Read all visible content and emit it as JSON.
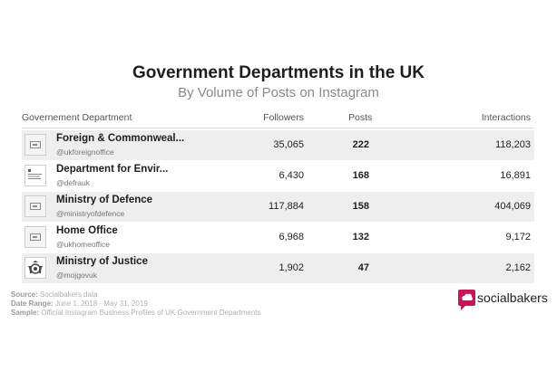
{
  "chart_data": {
    "type": "table",
    "title": "Government Departments in the UK",
    "subtitle": "By Volume of Posts on Instagram",
    "columns": [
      "Governement Department",
      "Followers",
      "Posts",
      "Interactions"
    ],
    "rows": [
      {
        "name": "Foreign & Commonweal...",
        "handle": "@ukforeignoffice",
        "followers": "35,065",
        "posts": "222",
        "interactions": "118,203"
      },
      {
        "name": "Department for Envir...",
        "handle": "@defrauk",
        "followers": "6,430",
        "posts": "168",
        "interactions": "16,891"
      },
      {
        "name": "Ministry of Defence",
        "handle": "@ministryofdefence",
        "followers": "117,884",
        "posts": "158",
        "interactions": "404,069"
      },
      {
        "name": "Home Office",
        "handle": "@ukhomeoffice",
        "followers": "6,968",
        "posts": "132",
        "interactions": "9,172"
      },
      {
        "name": "Ministry of Justice",
        "handle": "@mojgovuk",
        "followers": "1,902",
        "posts": "47",
        "interactions": "2,162"
      }
    ]
  },
  "footer": {
    "source_label": "Source:",
    "source": "Socialbakers data",
    "range_label": "Date Range:",
    "range": "June 1, 2018 - May 31, 2019",
    "sample_label": "Sample:",
    "sample": "Official Instagram Business Profiles of UK Government Departments"
  },
  "brand": {
    "name": "socialbakers",
    "color": "#c2185b"
  }
}
